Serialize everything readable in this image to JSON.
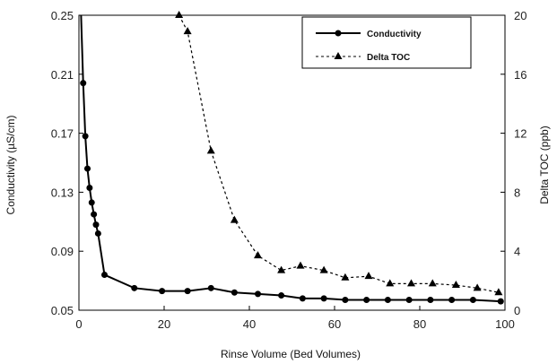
{
  "chart_data": {
    "type": "line",
    "xlabel": "Rinse Volume (Bed Volumes)",
    "ylabel_left": "Conductivity (µS/cm)",
    "ylabel_right": "Delta TOC (ppb)",
    "xlim": [
      0,
      100
    ],
    "ylim_left": [
      0.05,
      0.25
    ],
    "ylim_right": [
      0,
      20
    ],
    "x_ticks": [
      0,
      20,
      40,
      60,
      80,
      100
    ],
    "y_left_ticks": [
      0.05,
      0.09,
      0.13,
      0.17,
      0.21,
      0.25
    ],
    "y_right_ticks": [
      0,
      4,
      8,
      12,
      16,
      20
    ],
    "grid": false,
    "legend_position": "top-right",
    "series": [
      {
        "name": "Conductivity",
        "axis": "left",
        "marker": "circle",
        "line_style": "solid",
        "color": "#000000",
        "x": [
          1.0,
          1.5,
          2.0,
          2.5,
          3.0,
          3.5,
          4.0,
          4.5,
          6.0,
          13.0,
          19.5,
          25.5,
          31.0,
          36.5,
          42.0,
          47.5,
          52.5,
          57.5,
          62.5,
          67.5,
          72.5,
          77.5,
          82.5,
          87.5,
          92.5,
          99.0
        ],
        "y": [
          0.204,
          0.168,
          0.146,
          0.133,
          0.123,
          0.115,
          0.108,
          0.102,
          0.074,
          0.065,
          0.063,
          0.063,
          0.065,
          0.062,
          0.061,
          0.06,
          0.058,
          0.058,
          0.057,
          0.057,
          0.057,
          0.057,
          0.057,
          0.057,
          0.057,
          0.056
        ]
      },
      {
        "name": "Delta TOC",
        "axis": "right",
        "marker": "triangle",
        "line_style": "dashed",
        "color": "#000000",
        "x": [
          23.5,
          25.5,
          31.0,
          36.5,
          42.0,
          47.5,
          52.0,
          57.5,
          62.5,
          68.0,
          73.0,
          78.0,
          83.0,
          88.5,
          93.5,
          98.5
        ],
        "y": [
          20.0,
          18.9,
          10.8,
          6.1,
          3.7,
          2.7,
          3.0,
          2.7,
          2.2,
          2.3,
          1.8,
          1.8,
          1.8,
          1.7,
          1.5,
          1.2
        ]
      }
    ]
  }
}
